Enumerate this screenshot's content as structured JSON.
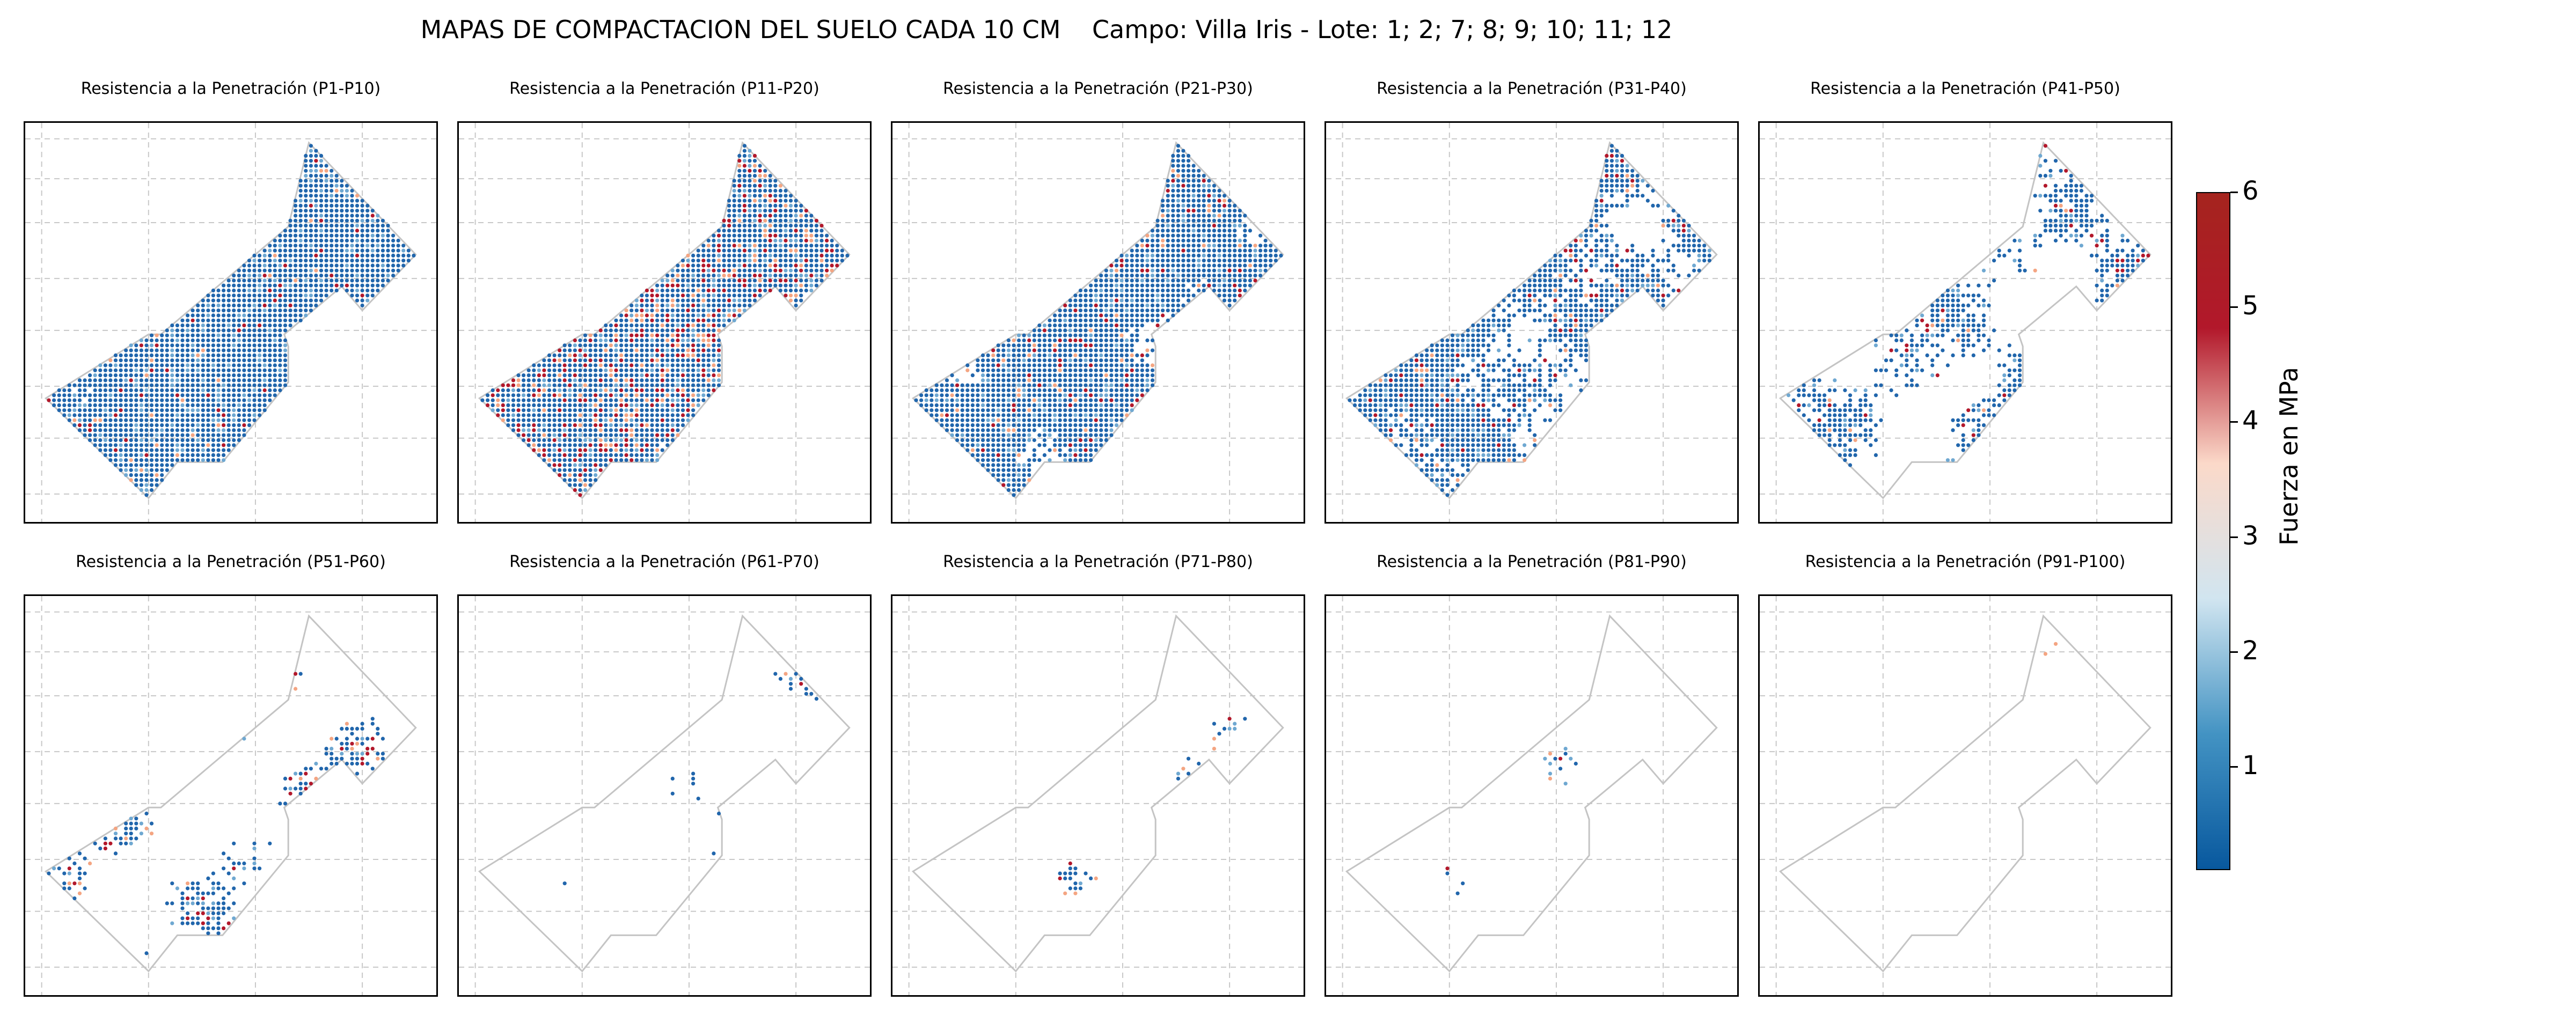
{
  "title": "MAPAS DE COMPACTACION DEL SUELO CADA 10 CM    Campo: Villa Iris - Lote: 1; 2; 7; 8; 9; 10; 11; 12",
  "chart_data": {
    "type": "heatmap",
    "grid": true,
    "colorbar": {
      "label": "Fuerza en MPa",
      "ticks": [
        1,
        2,
        3,
        4,
        5,
        6
      ],
      "range": [
        0.1,
        6
      ],
      "colormap": [
        "#08589e",
        "#4393c3",
        "#d1e5f0",
        "#fbd9c9",
        "#b2182b",
        "#a5241e"
      ]
    },
    "panels": [
      {
        "title": "Resistencia a la Penetración (P1-P10)",
        "coverage": 0.92,
        "high_fraction": 0.05
      },
      {
        "title": "Resistencia a la Penetración (P11-P20)",
        "coverage": 0.88,
        "high_fraction": 0.22
      },
      {
        "title": "Resistencia a la Penetración (P21-P30)",
        "coverage": 0.78,
        "high_fraction": 0.08
      },
      {
        "title": "Resistencia a la Penetración (P31-P40)",
        "coverage": 0.58,
        "high_fraction": 0.08
      },
      {
        "title": "Resistencia a la Penetración (P41-P50)",
        "coverage": 0.42,
        "high_fraction": 0.1
      },
      {
        "title": "Resistencia a la Penetración (P51-P60)",
        "coverage": 0.3,
        "high_fraction": 0.18
      },
      {
        "title": "Resistencia a la Penetración (P61-P70)",
        "coverage": 0.2,
        "high_fraction": 0.22
      },
      {
        "title": "Resistencia a la Penetración (P71-P80)",
        "coverage": 0.12,
        "high_fraction": 0.3
      },
      {
        "title": "Resistencia a la Penetración (P81-P90)",
        "coverage": 0.09,
        "high_fraction": 0.4
      },
      {
        "title": "Resistencia a la Penetración (P91-P100)",
        "coverage": 0.07,
        "high_fraction": 0.5
      }
    ]
  }
}
